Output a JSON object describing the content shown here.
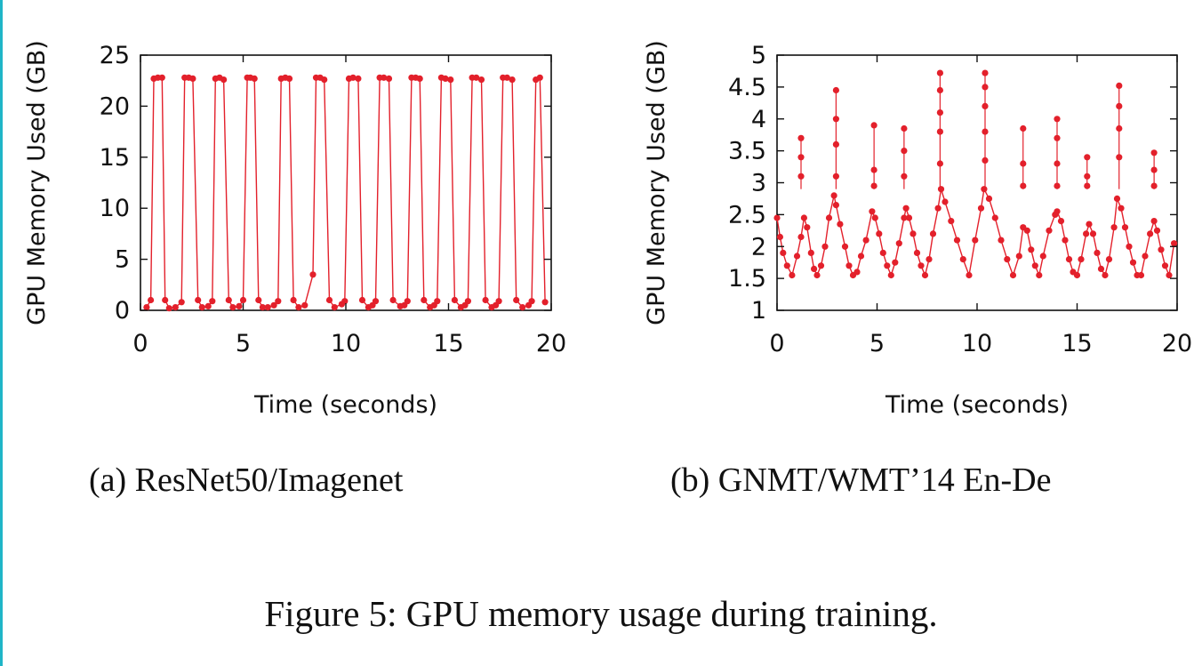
{
  "figure": {
    "caption": "Figure 5: GPU memory usage during training.",
    "colors": {
      "series": "#e3202b",
      "accent_edge": "#1fb5c7"
    }
  },
  "chart_data": [
    {
      "type": "line",
      "subcaption": "(a) ResNet50/Imagenet",
      "xlabel": "Time (seconds)",
      "ylabel": "GPU Memory Used (GB)",
      "xlim": [
        0,
        20
      ],
      "ylim": [
        0,
        25
      ],
      "xticks": [
        0,
        5,
        10,
        15,
        20
      ],
      "yticks": [
        0,
        5,
        10,
        15,
        20,
        25
      ],
      "grid": false,
      "markers": true,
      "series": [
        {
          "x": [
            0.3,
            0.5,
            0.65,
            0.85,
            1.05,
            1.2,
            1.4,
            1.7,
            2.0,
            2.15,
            2.35,
            2.55,
            2.8,
            3.0,
            3.3,
            3.5,
            3.65,
            3.85,
            4.05,
            4.3,
            4.5,
            4.8,
            5.0,
            5.2,
            5.35,
            5.55,
            5.75,
            5.95,
            6.2,
            6.5,
            6.7,
            6.85,
            7.05,
            7.25,
            7.45,
            7.7,
            8.0,
            8.4,
            8.55,
            8.75,
            8.95,
            9.2,
            9.45,
            9.8,
            9.95,
            10.15,
            10.35,
            10.6,
            10.8,
            11.1,
            11.3,
            11.45,
            11.65,
            11.85,
            12.1,
            12.3,
            12.65,
            12.85,
            13.0,
            13.2,
            13.4,
            13.6,
            13.8,
            14.1,
            14.3,
            14.45,
            14.65,
            14.85,
            15.1,
            15.3,
            15.6,
            15.8,
            15.95,
            16.15,
            16.35,
            16.6,
            16.8,
            17.1,
            17.3,
            17.45,
            17.65,
            17.85,
            18.1,
            18.3,
            18.6,
            18.9,
            19.05,
            19.25,
            19.45,
            19.7
          ],
          "y": [
            0.3,
            1.0,
            22.7,
            22.8,
            22.8,
            1.0,
            0.2,
            0.3,
            0.8,
            22.8,
            22.8,
            22.7,
            1.0,
            0.3,
            0.4,
            0.9,
            22.7,
            22.8,
            22.6,
            1.0,
            0.3,
            0.4,
            1.0,
            22.8,
            22.8,
            22.7,
            1.0,
            0.3,
            0.3,
            0.5,
            0.9,
            22.7,
            22.8,
            22.7,
            1.0,
            0.3,
            0.5,
            3.5,
            22.8,
            22.8,
            22.6,
            1.0,
            0.3,
            0.6,
            0.9,
            22.7,
            22.8,
            22.7,
            1.0,
            0.3,
            0.5,
            0.9,
            22.8,
            22.8,
            22.7,
            1.0,
            0.4,
            0.5,
            0.9,
            22.8,
            22.8,
            22.7,
            1.0,
            0.3,
            0.5,
            0.9,
            22.8,
            22.7,
            22.6,
            1.0,
            0.3,
            0.5,
            0.9,
            22.8,
            22.8,
            22.6,
            1.0,
            0.3,
            0.5,
            0.9,
            22.8,
            22.8,
            22.6,
            1.0,
            0.3,
            0.5,
            0.9,
            22.6,
            22.8,
            0.8
          ]
        }
      ]
    },
    {
      "type": "line",
      "subcaption": "(b) GNMT/WMT’14 En-De",
      "xlabel": "Time (seconds)",
      "ylabel": "GPU Memory Used (GB)",
      "xlim": [
        0,
        20
      ],
      "ylim": [
        1,
        5
      ],
      "xticks": [
        0,
        5,
        10,
        15,
        20
      ],
      "yticks": [
        1,
        1.5,
        2,
        2.5,
        3,
        3.5,
        4,
        4.5,
        5
      ],
      "grid": false,
      "markers": true,
      "series": [
        {
          "x": [
            0.0,
            0.15,
            0.3,
            0.5,
            0.75,
            1.0,
            1.2,
            1.35,
            1.5,
            1.7,
            1.85,
            2.0,
            2.2,
            2.4,
            2.6,
            2.85,
            2.95,
            3.15,
            3.4,
            3.6,
            3.8,
            4.0,
            4.2,
            4.45,
            4.75,
            4.9,
            5.1,
            5.3,
            5.5,
            5.7,
            5.9,
            6.1,
            6.35,
            6.45,
            6.6,
            6.8,
            7.0,
            7.2,
            7.4,
            7.6,
            7.8,
            8.05,
            8.2,
            8.4,
            8.7,
            9.0,
            9.3,
            9.6,
            9.9,
            10.2,
            10.35,
            10.6,
            10.9,
            11.2,
            11.5,
            11.8,
            12.1,
            12.3,
            12.5,
            12.7,
            12.9,
            13.1,
            13.3,
            13.6,
            13.9,
            14.0,
            14.2,
            14.4,
            14.6,
            14.8,
            15.0,
            15.2,
            15.45,
            15.6,
            15.8,
            16.0,
            16.2,
            16.4,
            16.6,
            16.85,
            17.0,
            17.2,
            17.4,
            17.6,
            17.8,
            18.0,
            18.2,
            18.4,
            18.65,
            18.85,
            19.0,
            19.2,
            19.4,
            19.6,
            19.85
          ],
          "y": [
            2.45,
            2.15,
            1.9,
            1.7,
            1.55,
            1.85,
            2.15,
            2.45,
            2.3,
            1.9,
            1.65,
            1.55,
            1.7,
            2.0,
            2.45,
            2.8,
            2.65,
            2.35,
            2.0,
            1.7,
            1.55,
            1.6,
            1.85,
            2.1,
            2.55,
            2.45,
            2.2,
            1.9,
            1.7,
            1.55,
            1.75,
            2.05,
            2.45,
            2.6,
            2.45,
            2.2,
            1.9,
            1.7,
            1.55,
            1.8,
            2.2,
            2.6,
            2.9,
            2.7,
            2.4,
            2.1,
            1.8,
            1.55,
            2.1,
            2.6,
            2.9,
            2.75,
            2.45,
            2.1,
            1.8,
            1.55,
            1.85,
            2.3,
            2.25,
            1.95,
            1.7,
            1.55,
            1.85,
            2.25,
            2.5,
            2.55,
            2.4,
            2.1,
            1.8,
            1.6,
            1.55,
            1.8,
            2.2,
            2.35,
            2.2,
            1.9,
            1.65,
            1.55,
            1.8,
            2.3,
            2.75,
            2.6,
            2.3,
            2.0,
            1.75,
            1.55,
            1.55,
            1.85,
            2.2,
            2.4,
            2.25,
            1.95,
            1.7,
            1.55,
            2.05
          ]
        },
        {
          "name": "",
          "x": [
            1.2,
            1.2,
            1.2,
            2.95,
            2.95,
            2.95,
            2.95,
            4.85,
            4.85,
            4.85,
            6.35,
            6.35,
            6.35,
            8.15,
            8.15,
            8.15,
            8.15,
            8.15,
            10.4,
            10.4,
            10.4,
            10.4,
            10.4,
            12.3,
            12.3,
            12.3,
            14.0,
            14.0,
            14.0,
            14.0,
            15.5,
            15.5,
            15.5,
            17.1,
            17.1,
            17.1,
            17.1,
            18.85,
            18.85,
            18.85
          ],
          "y": [
            3.1,
            3.4,
            3.7,
            3.1,
            3.6,
            4.0,
            4.45,
            2.95,
            3.2,
            3.9,
            3.1,
            3.5,
            3.85,
            3.3,
            3.8,
            4.1,
            4.45,
            4.72,
            3.35,
            3.8,
            4.2,
            4.5,
            4.72,
            2.95,
            3.3,
            3.85,
            2.95,
            3.3,
            3.7,
            4.0,
            2.95,
            3.1,
            3.4,
            3.4,
            3.85,
            4.2,
            4.52,
            2.95,
            3.2,
            3.47
          ]
        }
      ]
    }
  ]
}
